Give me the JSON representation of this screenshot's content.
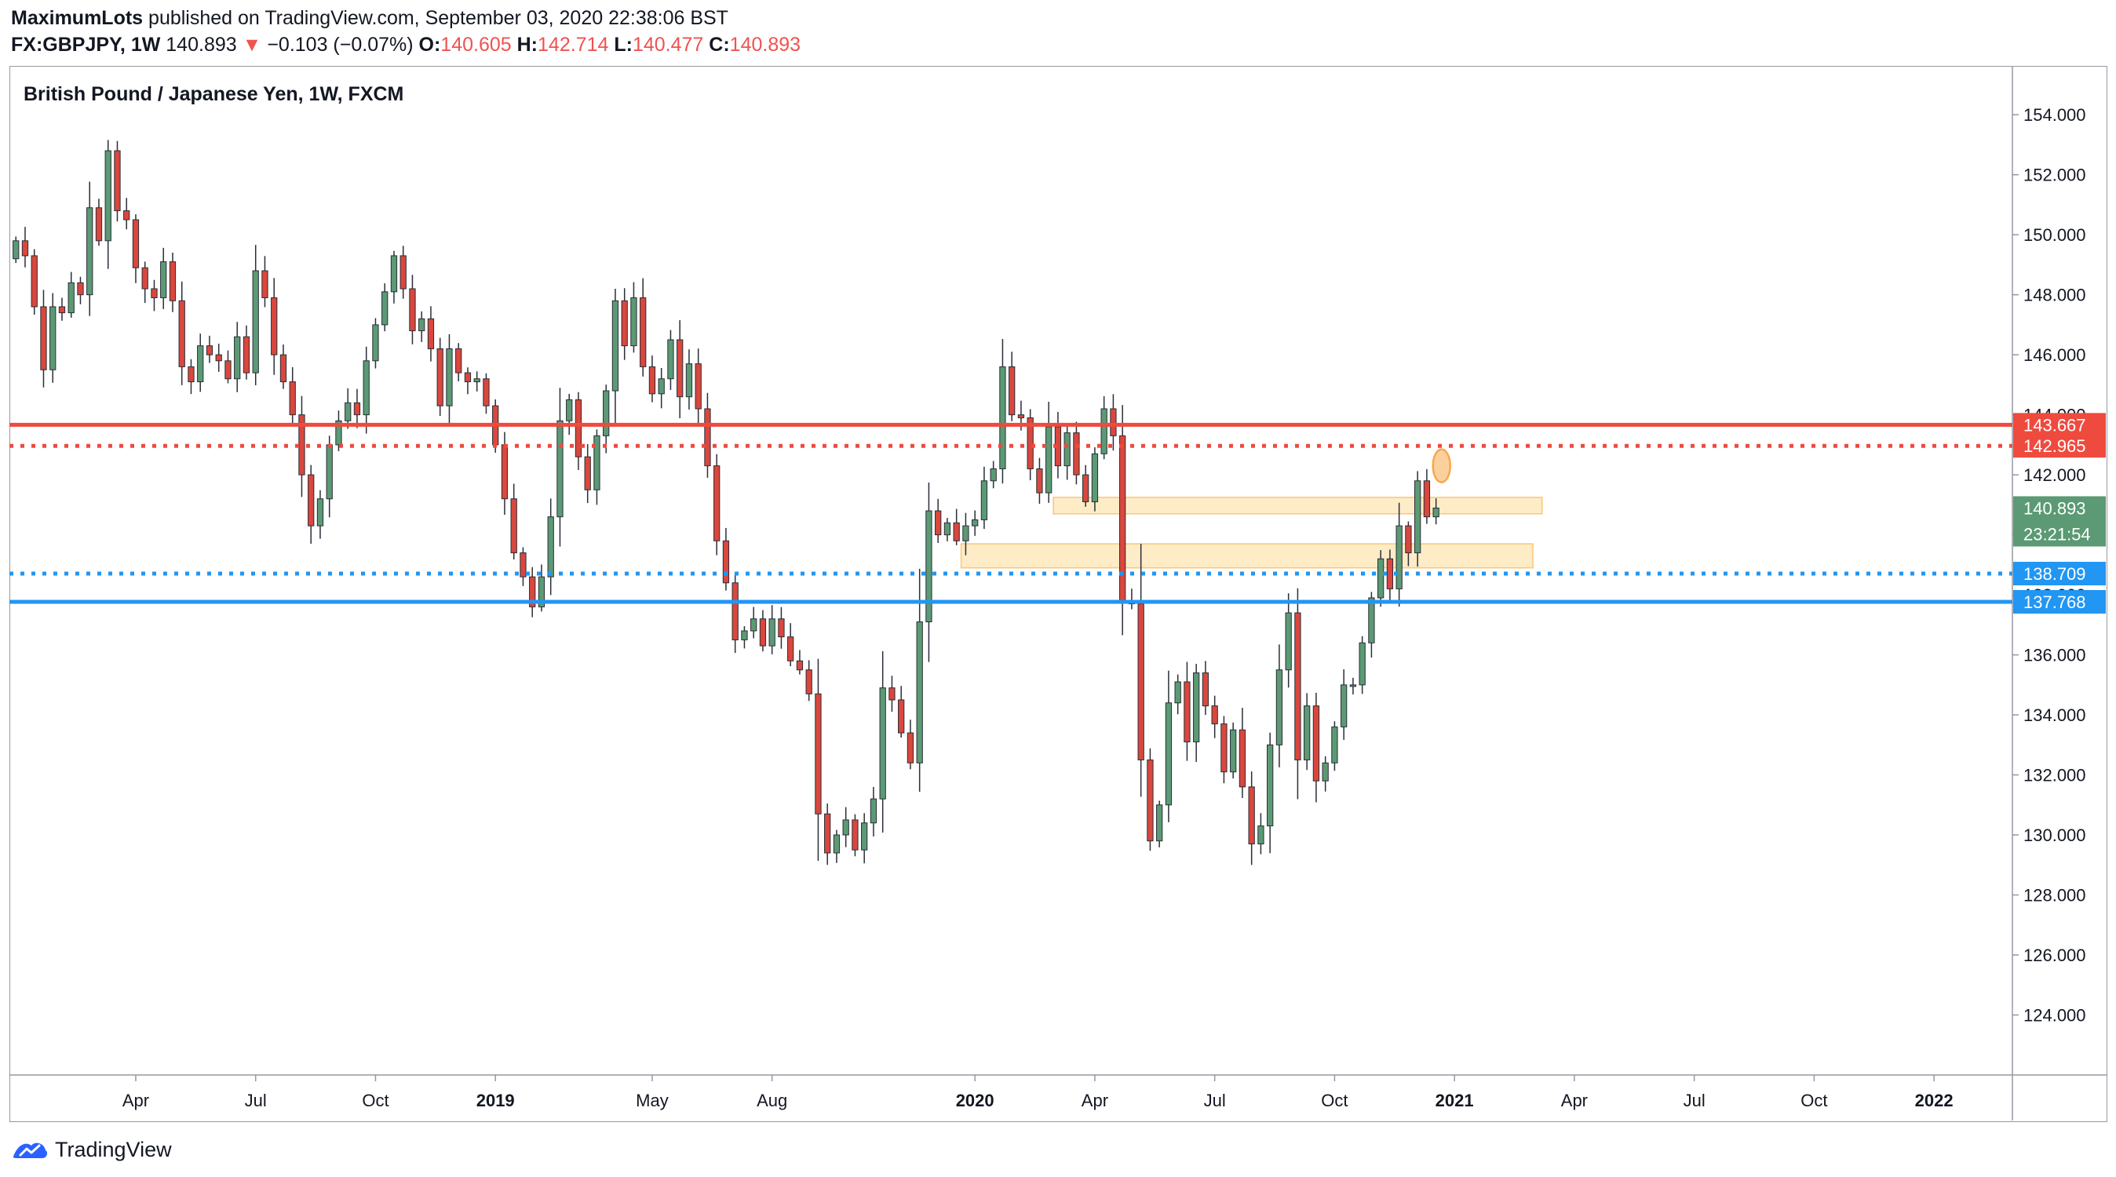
{
  "header": {
    "publisher": "MaximumLots",
    "published_text": " published on TradingView.com, September 03, 2020 22:38:06 BST",
    "symbol": "FX:GBPJPY, 1W",
    "last": "140.893",
    "change": "−0.103 (−0.07%)",
    "open_label": "O:",
    "open": "140.605",
    "high_label": "H:",
    "high": "142.714",
    "low_label": "L:",
    "low": "140.477",
    "close_label": "C:",
    "close": "140.893"
  },
  "footer": {
    "brand": "TradingView"
  },
  "colors": {
    "up": "#5b9a74",
    "down": "#d9473d",
    "resistance": "#ef4a3e",
    "support": "#2196f3",
    "zone_fill": "#fde6b3",
    "zone_border": "#f7c878",
    "highlight": "#f7a94a",
    "countdown_bg": "#5b9a74",
    "axis_text": "#131722"
  },
  "chart_data": {
    "type": "candlestick",
    "title": "British Pound / Japanese Yen, 1W, FXCM",
    "ylim": [
      122.0,
      155.6
    ],
    "y_ticks": [
      "124.000",
      "126.000",
      "128.000",
      "130.000",
      "132.000",
      "134.000",
      "136.000",
      "138.000",
      "140.000",
      "142.000",
      "144.000",
      "146.000",
      "148.000",
      "150.000",
      "152.000",
      "154.000"
    ],
    "x_ticks": [
      {
        "label": "Apr",
        "week": 13,
        "bold": false
      },
      {
        "label": "Jul",
        "week": 26,
        "bold": false
      },
      {
        "label": "Oct",
        "week": 39,
        "bold": false
      },
      {
        "label": "2019",
        "week": 52,
        "bold": true
      },
      {
        "label": "May",
        "week": 69,
        "bold": false
      },
      {
        "label": "Aug",
        "week": 82,
        "bold": false
      },
      {
        "label": "2020",
        "week": 104,
        "bold": true
      },
      {
        "label": "Apr",
        "week": 117,
        "bold": false
      },
      {
        "label": "Jul",
        "week": 130,
        "bold": false
      },
      {
        "label": "Oct",
        "week": 143,
        "bold": false
      },
      {
        "label": "2021",
        "week": 156,
        "bold": true
      },
      {
        "label": "Apr",
        "week": 169,
        "bold": false
      },
      {
        "label": "Jul",
        "week": 182,
        "bold": false
      },
      {
        "label": "Oct",
        "week": 195,
        "bold": false
      },
      {
        "label": "2022",
        "week": 208,
        "bold": true
      }
    ],
    "week_range": [
      -0.7,
      216.5
    ],
    "candles_start_week": 0,
    "closes": [
      149.8,
      149.3,
      147.6,
      145.5,
      147.6,
      147.4,
      148.4,
      148.0,
      150.9,
      149.8,
      152.8,
      150.8,
      150.5,
      148.9,
      148.2,
      147.9,
      149.1,
      147.8,
      145.6,
      145.1,
      146.3,
      146.0,
      145.8,
      145.2,
      146.6,
      145.4,
      148.8,
      147.9,
      146.0,
      145.1,
      144.0,
      142.0,
      140.3,
      141.2,
      143.0,
      143.8,
      144.4,
      144.0,
      145.8,
      147.0,
      148.1,
      149.3,
      148.2,
      146.8,
      147.2,
      146.2,
      144.3,
      146.2,
      145.4,
      145.1,
      145.2,
      144.3,
      143.0,
      141.2,
      139.4,
      138.6,
      137.6,
      138.6,
      140.6,
      143.8,
      144.5,
      142.6,
      141.5,
      143.3,
      144.8,
      147.8,
      146.3,
      147.9,
      145.6,
      144.7,
      145.2,
      146.5,
      144.6,
      145.7,
      144.2,
      142.3,
      139.8,
      138.4,
      136.5,
      136.8,
      137.2,
      136.3,
      137.2,
      136.6,
      135.8,
      135.5,
      134.7,
      130.7,
      129.4,
      130.0,
      130.5,
      129.5,
      130.4,
      131.2,
      134.9,
      134.5,
      133.4,
      132.4,
      137.1,
      140.8,
      140.0,
      140.4,
      139.8,
      140.3,
      140.5,
      141.8,
      142.2,
      145.6,
      144.0,
      143.9,
      142.2,
      141.4,
      143.6,
      142.3,
      143.4,
      142.0,
      141.1,
      142.7,
      144.2,
      143.3,
      137.8,
      137.7,
      132.5,
      129.8,
      131.0,
      134.4,
      135.1,
      133.1,
      135.4,
      134.3,
      133.7,
      132.1,
      133.5,
      131.6,
      129.7,
      130.3,
      133.0,
      135.5,
      137.4,
      132.5,
      134.3,
      131.8,
      132.4,
      133.6,
      135.0,
      135.0,
      136.4,
      137.9,
      139.2,
      138.2,
      140.3,
      139.4,
      141.8,
      140.6,
      140.893
    ],
    "first_open": 149.2,
    "overlays": [
      {
        "kind": "hline",
        "value": 143.667,
        "style": "solid",
        "color_key": "resistance",
        "label": "143.667"
      },
      {
        "kind": "hline",
        "value": 142.965,
        "style": "dotted",
        "color_key": "resistance",
        "label": "142.965"
      },
      {
        "kind": "hline",
        "value": 138.709,
        "style": "dotted",
        "color_key": "support",
        "label": "138.709"
      },
      {
        "kind": "hline",
        "value": 137.768,
        "style": "solid",
        "color_key": "support",
        "label": "137.768"
      },
      {
        "kind": "zone",
        "y_top": 141.25,
        "y_bottom": 140.7,
        "week_start": 112.5,
        "week_end": 165.5
      },
      {
        "kind": "zone",
        "y_top": 139.7,
        "y_bottom": 138.9,
        "week_start": 102.5,
        "week_end": 164.5
      },
      {
        "kind": "ellipse",
        "cx_week": 154.6,
        "cy": 142.3,
        "ry_price": 0.55
      }
    ],
    "last_price_label": "140.893",
    "countdown": "23:21:54"
  }
}
